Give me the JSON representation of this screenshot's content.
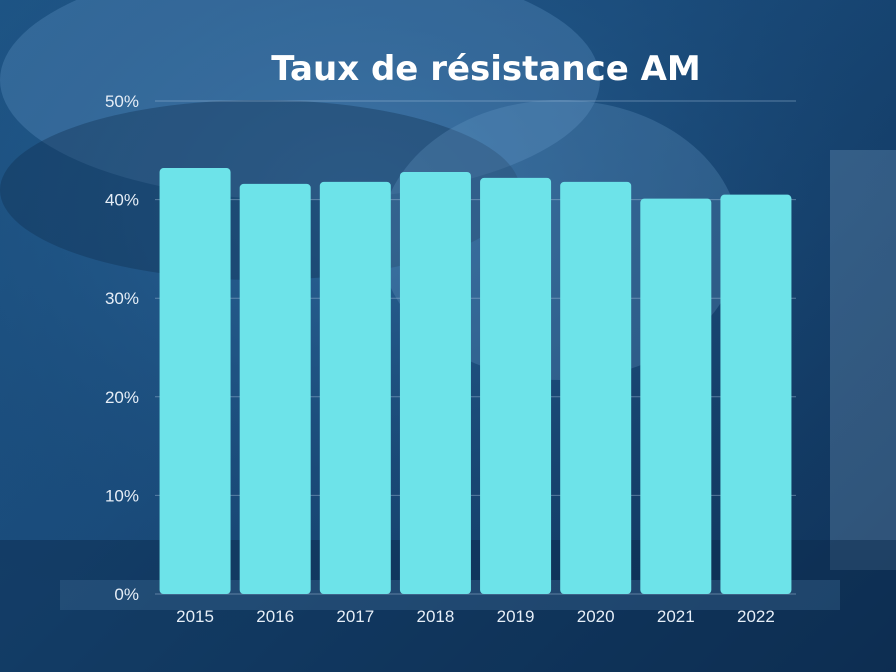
{
  "chart_data": {
    "type": "bar",
    "title": "Taux de résistance AM",
    "categories": [
      "2015",
      "2016",
      "2017",
      "2018",
      "2019",
      "2020",
      "2021",
      "2022"
    ],
    "values": [
      43.2,
      41.6,
      41.8,
      42.8,
      42.2,
      41.8,
      40.1,
      40.5
    ],
    "ylim": [
      0,
      50
    ],
    "y_ticks": [
      "0%",
      "10%",
      "20%",
      "30%",
      "40%",
      "50%"
    ],
    "xlabel": "",
    "ylabel": "",
    "grid": true,
    "bar_color": "#6de3e9"
  }
}
